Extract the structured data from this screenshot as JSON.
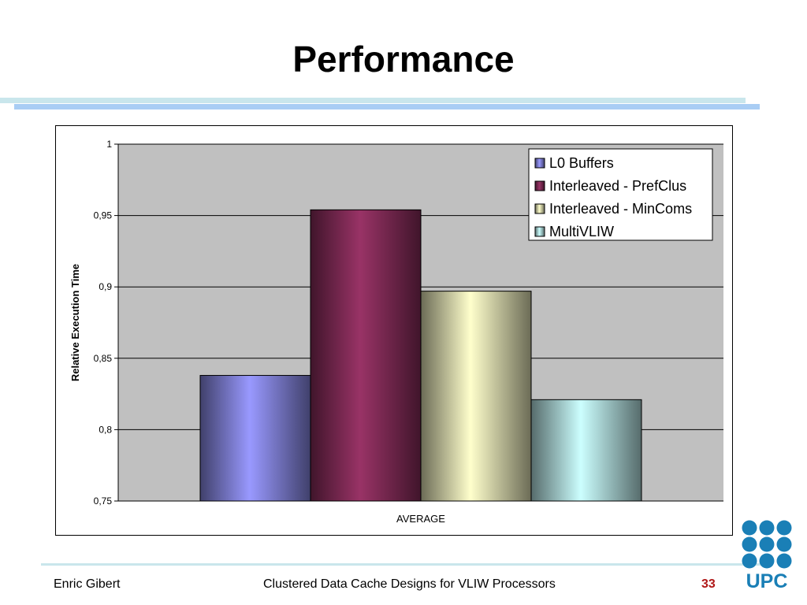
{
  "slide": {
    "title": "Performance",
    "footer_author": "Enric Gibert",
    "footer_center": "Clustered Data Cache Designs for VLIW Processors",
    "page_number": "33",
    "page_number_color": "#b01818",
    "logo_text": "UPC",
    "logo_color": "#1a7fb6"
  },
  "chart_data": {
    "type": "bar",
    "categories": [
      "AVERAGE"
    ],
    "series": [
      {
        "name": "L0 Buffers",
        "values": [
          0.838
        ],
        "color": "#9999ff"
      },
      {
        "name": "Interleaved - PrefClus",
        "values": [
          0.954
        ],
        "color": "#993366"
      },
      {
        "name": "Interleaved - MinComs",
        "values": [
          0.897
        ],
        "color": "#ffffcc"
      },
      {
        "name": "MultiVLIW",
        "values": [
          0.821
        ],
        "color": "#ccffff"
      }
    ],
    "xlabel": "AVERAGE",
    "ylabel": "Relative Execution Time",
    "ylim": [
      0.75,
      1
    ],
    "yticks": [
      "1",
      "0,95",
      "0,9",
      "0,85",
      "0,8",
      "0,75"
    ],
    "grid": true,
    "legend": "top-right",
    "plot_background": "#c0c0c0"
  }
}
